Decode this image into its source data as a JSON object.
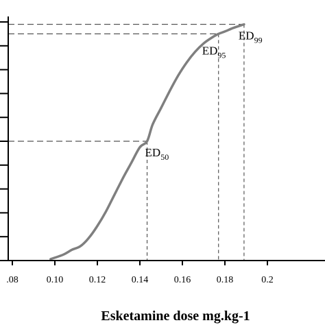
{
  "chart_data": {
    "type": "line",
    "xlabel": "Esketamine dose mg.kg-1",
    "ylabel": "",
    "xlim": [
      0.08,
      0.2
    ],
    "ylim": [
      0,
      100
    ],
    "x_ticks": [
      "0.08",
      "0.10",
      "0.12",
      "0.14",
      "0.16",
      "0.18",
      "0.20"
    ],
    "x_ticks_display": [
      ".08",
      "0.10",
      "0.12",
      "0.14",
      "0.16",
      "0.18",
      "0.2"
    ],
    "y_ticks": [
      0,
      10,
      20,
      30,
      40,
      50,
      60,
      70,
      80,
      90,
      100
    ],
    "grid": false,
    "legend": "none",
    "series": [
      {
        "points": [
          [
            0.098,
            0.6
          ],
          [
            0.104,
            2.5
          ],
          [
            0.108,
            4.5
          ],
          [
            0.112,
            6.0
          ],
          [
            0.116,
            9.5
          ],
          [
            0.12,
            14.5
          ],
          [
            0.124,
            20.5
          ],
          [
            0.128,
            27.5
          ],
          [
            0.132,
            34.5
          ],
          [
            0.136,
            41.0
          ],
          [
            0.14,
            47.5
          ],
          [
            0.1434,
            50
          ],
          [
            0.146,
            57.0
          ],
          [
            0.15,
            64.0
          ],
          [
            0.154,
            71.0
          ],
          [
            0.158,
            77.5
          ],
          [
            0.162,
            83.0
          ],
          [
            0.166,
            87.5
          ],
          [
            0.17,
            91.0
          ],
          [
            0.174,
            93.5
          ],
          [
            0.177,
            95
          ],
          [
            0.18,
            96.0
          ],
          [
            0.184,
            97.5
          ],
          [
            0.189,
            99
          ]
        ],
        "color": "#7f7f7f"
      }
    ],
    "annotations": [
      {
        "label": "ED",
        "sub": "50",
        "x": 0.1434,
        "y": 50
      },
      {
        "label": "ED",
        "sub": "95",
        "x": 0.177,
        "y": 95
      },
      {
        "label": "ED",
        "sub": "99",
        "x": 0.189,
        "y": 99
      }
    ]
  }
}
